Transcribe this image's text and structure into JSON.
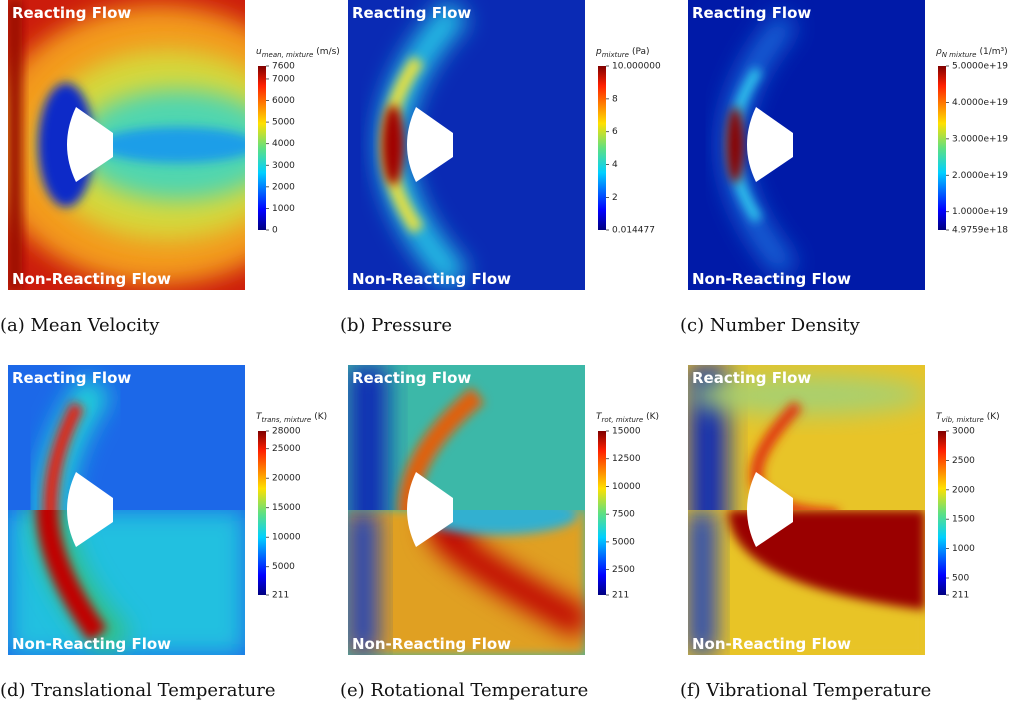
{
  "figure": {
    "panels": [
      {
        "caption": "(a) Mean Velocity",
        "top_label": "Reacting Flow",
        "bottom_label": "Non-Reacting Flow",
        "colorbar": {
          "symbol": "u",
          "subscript": "mean, mixture",
          "unit": "(m/s)",
          "lim": [
            0,
            7600
          ],
          "ticks": [
            0,
            1000,
            2000,
            3000,
            4000,
            5000,
            6000,
            7000,
            7600
          ]
        }
      },
      {
        "caption": "(b) Pressure",
        "top_label": "Reacting Flow",
        "bottom_label": "Non-Reacting Flow",
        "colorbar": {
          "symbol": "p",
          "subscript": "mixture",
          "unit": "(Pa)",
          "lim": [
            0.014477,
            10
          ],
          "ticks": [
            0.014477,
            2,
            4,
            6,
            8,
            {
              "value": 10,
              "label": "10.000000"
            }
          ]
        }
      },
      {
        "caption": "(c) Number Density",
        "top_label": "Reacting Flow",
        "bottom_label": "Non-Reacting Flow",
        "colorbar": {
          "symbol": "ρ",
          "subscript": "N mixture",
          "unit": "(1/m³)",
          "lim": [
            4.9759e+18,
            5e+19
          ],
          "ticks": [
            {
              "value": 4.9759e+18,
              "label": "4.9759e+18"
            },
            {
              "value": 1e+19,
              "label": "1.0000e+19"
            },
            {
              "value": 2e+19,
              "label": "2.0000e+19"
            },
            {
              "value": 3e+19,
              "label": "3.0000e+19"
            },
            {
              "value": 4e+19,
              "label": "4.0000e+19"
            },
            {
              "value": 5e+19,
              "label": "5.0000e+19"
            }
          ]
        }
      },
      {
        "caption": "(d) Translational Temperature",
        "top_label": "Reacting Flow",
        "bottom_label": "Non-Reacting Flow",
        "colorbar": {
          "symbol": "T",
          "subscript": "trans, mixture",
          "unit": "(K)",
          "lim": [
            211,
            28000
          ],
          "ticks": [
            211,
            5000,
            10000,
            15000,
            20000,
            25000,
            28000
          ]
        }
      },
      {
        "caption": "(e) Rotational Temperature",
        "top_label": "Reacting Flow",
        "bottom_label": "Non-Reacting Flow",
        "colorbar": {
          "symbol": "T",
          "subscript": "rot, mixture",
          "unit": "(K)",
          "lim": [
            211,
            15000
          ],
          "ticks": [
            211,
            2500,
            5000,
            7500,
            10000,
            12500,
            15000
          ]
        }
      },
      {
        "caption": "(f) Vibrational Temperature",
        "top_label": "Reacting Flow",
        "bottom_label": "Non-Reacting Flow",
        "colorbar": {
          "symbol": "T",
          "subscript": "vib, mixture",
          "unit": "(K)",
          "lim": [
            211,
            3000
          ],
          "ticks": [
            211,
            500,
            1000,
            1500,
            2000,
            2500,
            3000
          ]
        }
      }
    ]
  }
}
